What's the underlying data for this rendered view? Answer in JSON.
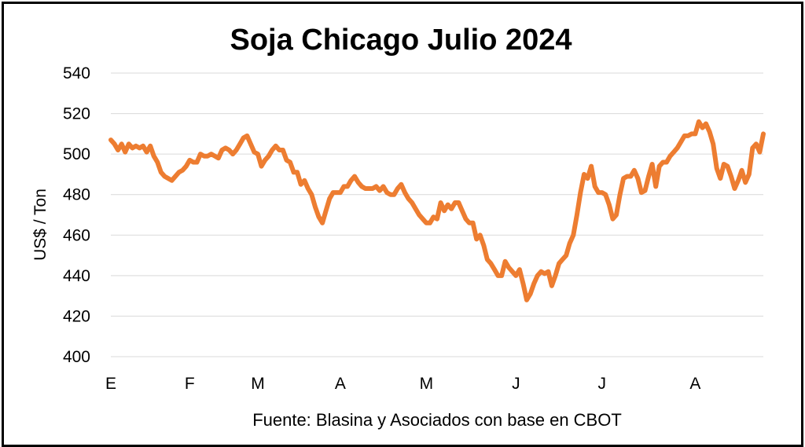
{
  "chart_data": {
    "type": "line",
    "title": "Soja Chicago Julio 2024",
    "ylabel": "US$ / Ton",
    "xlabel": "",
    "source": "Fuente: Blasina y Asociados con base en CBOT",
    "ylim": [
      400,
      540
    ],
    "yticks": [
      400,
      420,
      440,
      460,
      480,
      500,
      520,
      540
    ],
    "grid": true,
    "x_tick_labels": [
      "E",
      "F",
      "M",
      "A",
      "M",
      "J",
      "J",
      "A"
    ],
    "x_tick_positions": [
      0,
      22,
      41,
      64,
      88,
      113,
      137,
      163
    ],
    "line_color": "#ED7D31",
    "series": [
      {
        "values": [
          507,
          505,
          502,
          505,
          501,
          505,
          503,
          504,
          503,
          504,
          501,
          504,
          499,
          496,
          491,
          489,
          488,
          487,
          489,
          491,
          492,
          494,
          497,
          496,
          496,
          500,
          499,
          499,
          500,
          499,
          498,
          502,
          503,
          502,
          500,
          502,
          505,
          508,
          509,
          505,
          501,
          500,
          494,
          497,
          499,
          502,
          504,
          502,
          502,
          497,
          496,
          491,
          491,
          485,
          487,
          483,
          480,
          474,
          469,
          466,
          472,
          478,
          481,
          481,
          481,
          484,
          484,
          487,
          489,
          486,
          484,
          483,
          483,
          483,
          484,
          482,
          484,
          481,
          480,
          480,
          483,
          485,
          481,
          478,
          476,
          473,
          470,
          468,
          466,
          466,
          469,
          468,
          476,
          472,
          475,
          473,
          476,
          476,
          472,
          468,
          466,
          466,
          458,
          460,
          455,
          448,
          446,
          443,
          440,
          440,
          447,
          444,
          442,
          440,
          443,
          436,
          428,
          431,
          436,
          440,
          442,
          441,
          442,
          435,
          440,
          446,
          448,
          450,
          456,
          460,
          470,
          481,
          490,
          488,
          494,
          484,
          481,
          481,
          480,
          475,
          468,
          470,
          480,
          488,
          489,
          489,
          492,
          488,
          481,
          482,
          489,
          495,
          484,
          494,
          496,
          496,
          499,
          501,
          503,
          506,
          509,
          509,
          510,
          510,
          516,
          513,
          515,
          511,
          505,
          493,
          488,
          495,
          494,
          489,
          483,
          487,
          492,
          486,
          490,
          503,
          505,
          501,
          510
        ]
      }
    ]
  }
}
